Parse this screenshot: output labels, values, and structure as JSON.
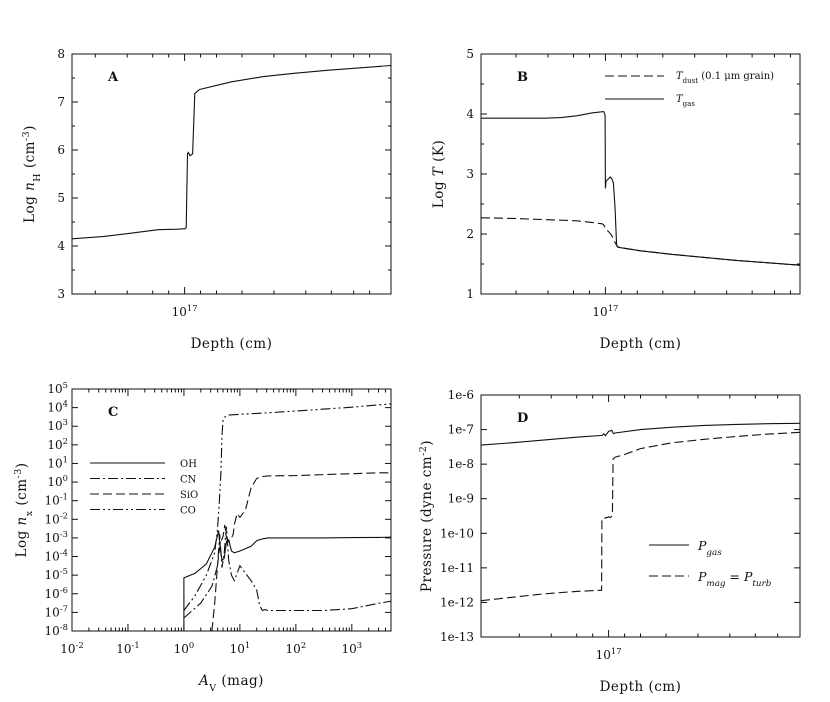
{
  "chart_data": [
    {
      "id": "A",
      "type": "line",
      "panel_label": "A",
      "xlabel": "Depth (cm)",
      "ylabel_parts": [
        "Log ",
        "n",
        "H",
        " (cm",
        "-3",
        ")"
      ],
      "x_tick_label": "10",
      "x_tick_exp": "17",
      "x_range": [
        0.0,
        1.0
      ],
      "x_tick_position": 0.353,
      "ylim": [
        3,
        8
      ],
      "yticks": [
        "3",
        "4",
        "5",
        "6",
        "7",
        "8"
      ],
      "series": [
        {
          "name": "log nH",
          "style": "solid",
          "x": [
            0.0,
            0.1,
            0.2,
            0.27,
            0.33,
            0.355,
            0.358,
            0.362,
            0.365,
            0.37,
            0.378,
            0.385,
            0.4,
            0.5,
            0.6,
            0.7,
            0.8,
            0.9,
            1.0
          ],
          "y": [
            4.15,
            4.2,
            4.28,
            4.34,
            4.35,
            4.36,
            4.38,
            5.92,
            5.95,
            5.88,
            5.92,
            7.18,
            7.26,
            7.42,
            7.53,
            7.6,
            7.66,
            7.71,
            7.76
          ]
        }
      ]
    },
    {
      "id": "B",
      "type": "line",
      "panel_label": "B",
      "xlabel": "Depth (cm)",
      "ylabel_parts": [
        "Log ",
        "T",
        " (K)"
      ],
      "x_tick_label": "10",
      "x_tick_exp": "17",
      "x_range": [
        0.0,
        1.0
      ],
      "x_tick_position": 0.39,
      "ylim": [
        1,
        5
      ],
      "yticks": [
        "1",
        "2",
        "3",
        "4",
        "5"
      ],
      "legend": [
        {
          "symbol": "T",
          "sub": "dust",
          "note": " (0.1 μm grain)",
          "style": "dashed"
        },
        {
          "symbol": "T",
          "sub": "gas",
          "note": "",
          "style": "solid"
        }
      ],
      "series": [
        {
          "name": "T gas",
          "style": "solid",
          "x": [
            0.0,
            0.1,
            0.2,
            0.25,
            0.3,
            0.35,
            0.385,
            0.389,
            0.39,
            0.392,
            0.4,
            0.405,
            0.41,
            0.415,
            0.42,
            0.425,
            0.428,
            0.43,
            0.44,
            0.5,
            0.6,
            0.7,
            0.8,
            0.9,
            1.0
          ],
          "y": [
            3.93,
            3.93,
            3.93,
            3.94,
            3.97,
            4.02,
            4.04,
            3.98,
            2.76,
            2.88,
            2.92,
            2.95,
            2.92,
            2.85,
            2.45,
            1.82,
            1.79,
            1.78,
            1.77,
            1.72,
            1.66,
            1.61,
            1.56,
            1.52,
            1.48
          ]
        },
        {
          "name": "T dust",
          "style": "dashed",
          "x": [
            0.0,
            0.1,
            0.2,
            0.3,
            0.35,
            0.38,
            0.385,
            0.39,
            0.395,
            0.4,
            0.405,
            0.41,
            0.415,
            0.42,
            0.425,
            0.43,
            0.44,
            0.5,
            0.6,
            0.7,
            0.8,
            0.9,
            1.0
          ],
          "y": [
            2.27,
            2.26,
            2.24,
            2.22,
            2.19,
            2.17,
            2.15,
            2.1,
            2.06,
            2.04,
            2.01,
            1.97,
            1.92,
            1.86,
            1.81,
            1.78,
            1.77,
            1.72,
            1.66,
            1.61,
            1.56,
            1.52,
            1.48
          ]
        }
      ]
    },
    {
      "id": "C",
      "type": "line",
      "panel_label": "C",
      "xlabel_parts": [
        "A",
        "V",
        " (mag)"
      ],
      "ylabel_parts": [
        "Log ",
        "n",
        "x",
        " (cm",
        "-3",
        ")"
      ],
      "x_log_range": [
        -2,
        3.7
      ],
      "x_ticks": [
        {
          "base": "10",
          "exp": "-2",
          "value": -2
        },
        {
          "base": "10",
          "exp": "-1",
          "value": -1
        },
        {
          "base": "10",
          "exp": "0",
          "value": 0
        },
        {
          "base": "10",
          "exp": "1",
          "value": 1
        },
        {
          "base": "10",
          "exp": "2",
          "value": 2
        },
        {
          "base": "10",
          "exp": "3",
          "value": 3
        }
      ],
      "ylim": [
        -8,
        5
      ],
      "yticks": [
        {
          "base": "10",
          "exp": "-8"
        },
        {
          "base": "10",
          "exp": "-7"
        },
        {
          "base": "10",
          "exp": "-6"
        },
        {
          "base": "10",
          "exp": "-5"
        },
        {
          "base": "10",
          "exp": "-4"
        },
        {
          "base": "10",
          "exp": "-3"
        },
        {
          "base": "10",
          "exp": "-2"
        },
        {
          "base": "10",
          "exp": "-1"
        },
        {
          "base": "10",
          "exp": "0"
        },
        {
          "base": "10",
          "exp": "1"
        },
        {
          "base": "10",
          "exp": "2"
        },
        {
          "base": "10",
          "exp": "3"
        },
        {
          "base": "10",
          "exp": "4"
        },
        {
          "base": "10",
          "exp": "5"
        }
      ],
      "legend": [
        {
          "label": "OH",
          "style": "solid"
        },
        {
          "label": "CN",
          "style": "dashdot"
        },
        {
          "label": "SiO",
          "style": "dashed"
        },
        {
          "label": "CO",
          "style": "dashdotdot"
        }
      ],
      "series": [
        {
          "name": "OH",
          "style": "solid",
          "x": [
            0.0,
            0.0,
            0.2,
            0.4,
            0.55,
            0.62,
            0.65,
            0.68,
            0.72,
            0.76,
            0.8,
            0.85,
            0.9,
            1.0,
            1.2,
            1.3,
            1.4,
            1.5,
            2.0,
            2.5,
            3.0,
            3.5,
            3.7
          ],
          "y": [
            -8,
            -5.15,
            -4.9,
            -4.4,
            -3.5,
            -2.6,
            -3.6,
            -4.2,
            -4.1,
            -3.2,
            -3.1,
            -3.7,
            -3.8,
            -3.7,
            -3.45,
            -3.15,
            -3.05,
            -3.0,
            -3.0,
            -3.0,
            -2.98,
            -2.97,
            -2.96
          ]
        },
        {
          "name": "CN",
          "style": "dashdot",
          "x": [
            0.0,
            0.3,
            0.5,
            0.6,
            0.64,
            0.68,
            0.72,
            0.76,
            0.8,
            0.85,
            0.9,
            1.0,
            1.1,
            1.2,
            1.3,
            1.35,
            1.4,
            1.45,
            1.5,
            2.0,
            2.5,
            3.0,
            3.5,
            3.7
          ],
          "y": [
            -7.3,
            -6.5,
            -5.6,
            -4.5,
            -2.8,
            -4.6,
            -3.8,
            -2.4,
            -4.2,
            -5.0,
            -5.3,
            -4.5,
            -4.9,
            -5.3,
            -5.8,
            -6.6,
            -6.9,
            -6.85,
            -6.9,
            -6.9,
            -6.9,
            -6.8,
            -6.5,
            -6.4
          ]
        },
        {
          "name": "SiO",
          "style": "dashed",
          "x": [
            0.5,
            0.55,
            0.6,
            0.63,
            0.66,
            0.7,
            0.73,
            0.76,
            0.8,
            0.85,
            0.88,
            0.9,
            0.95,
            1.0,
            1.1,
            1.2,
            1.3,
            1.4,
            1.5,
            2.0,
            2.5,
            3.0,
            3.5,
            3.7
          ],
          "y": [
            -8,
            -6.5,
            -4.5,
            -3.7,
            -3.2,
            -2.9,
            -2.3,
            -3.0,
            -3.2,
            -3.0,
            -2.8,
            -2.3,
            -1.7,
            -1.9,
            -1.5,
            -0.3,
            0.2,
            0.3,
            0.33,
            0.35,
            0.4,
            0.45,
            0.5,
            0.5
          ]
        },
        {
          "name": "CO",
          "style": "dashdotdot",
          "x": [
            0.0,
            0.2,
            0.4,
            0.55,
            0.6,
            0.63,
            0.66,
            0.68,
            0.7,
            0.75,
            0.8,
            0.9,
            1.0,
            1.5,
            2.0,
            2.5,
            3.0,
            3.5,
            3.7
          ],
          "y": [
            -6.9,
            -6.1,
            -5.0,
            -3.8,
            -2.5,
            -1.2,
            0.5,
            2.5,
            3.4,
            3.55,
            3.6,
            3.62,
            3.64,
            3.72,
            3.82,
            3.92,
            4.02,
            4.15,
            4.2
          ]
        }
      ]
    },
    {
      "id": "D",
      "type": "line",
      "panel_label": "D",
      "xlabel": "Depth (cm)",
      "ylabel_parts": [
        "Pressure (dyne cm",
        "-2",
        ")"
      ],
      "x_tick_label": "10",
      "x_tick_exp": "17",
      "x_range": [
        0.0,
        1.0
      ],
      "x_tick_position": 0.4,
      "ylim": [
        -13,
        -6
      ],
      "yticks": [
        "1e-13",
        "1e-12",
        "1e-11",
        "1e-10",
        "1e-9",
        "1e-8",
        "1e-7",
        "1e-6"
      ],
      "legend": [
        {
          "symbol": "P",
          "sub": "gas",
          "style": "solid"
        },
        {
          "symbol": "P",
          "sub": "mag",
          "equals": "=",
          "symbol2": "P",
          "sub2": "turb",
          "style": "dashed"
        }
      ],
      "series": [
        {
          "name": "P gas",
          "style": "solid",
          "x": [
            0.0,
            0.1,
            0.2,
            0.3,
            0.38,
            0.385,
            0.39,
            0.4,
            0.41,
            0.415,
            0.42,
            0.5,
            0.6,
            0.7,
            0.8,
            0.9,
            1.0
          ],
          "y": [
            -7.45,
            -7.38,
            -7.3,
            -7.22,
            -7.17,
            -7.12,
            -7.18,
            -7.05,
            -7.02,
            -7.12,
            -7.1,
            -7.0,
            -6.93,
            -6.88,
            -6.85,
            -6.83,
            -6.82
          ]
        },
        {
          "name": "P mag = P turb",
          "style": "dashed",
          "x": [
            0.0,
            0.1,
            0.2,
            0.3,
            0.37,
            0.378,
            0.379,
            0.385,
            0.39,
            0.395,
            0.4,
            0.405,
            0.41,
            0.412,
            0.414,
            0.42,
            0.45,
            0.5,
            0.6,
            0.7,
            0.8,
            0.9,
            1.0
          ],
          "y": [
            -11.95,
            -11.85,
            -11.75,
            -11.68,
            -11.65,
            -11.65,
            -9.6,
            -9.6,
            -9.55,
            -9.55,
            -9.52,
            -9.55,
            -9.5,
            -9.45,
            -7.85,
            -7.8,
            -7.72,
            -7.55,
            -7.38,
            -7.28,
            -7.2,
            -7.13,
            -7.08
          ]
        }
      ]
    }
  ]
}
